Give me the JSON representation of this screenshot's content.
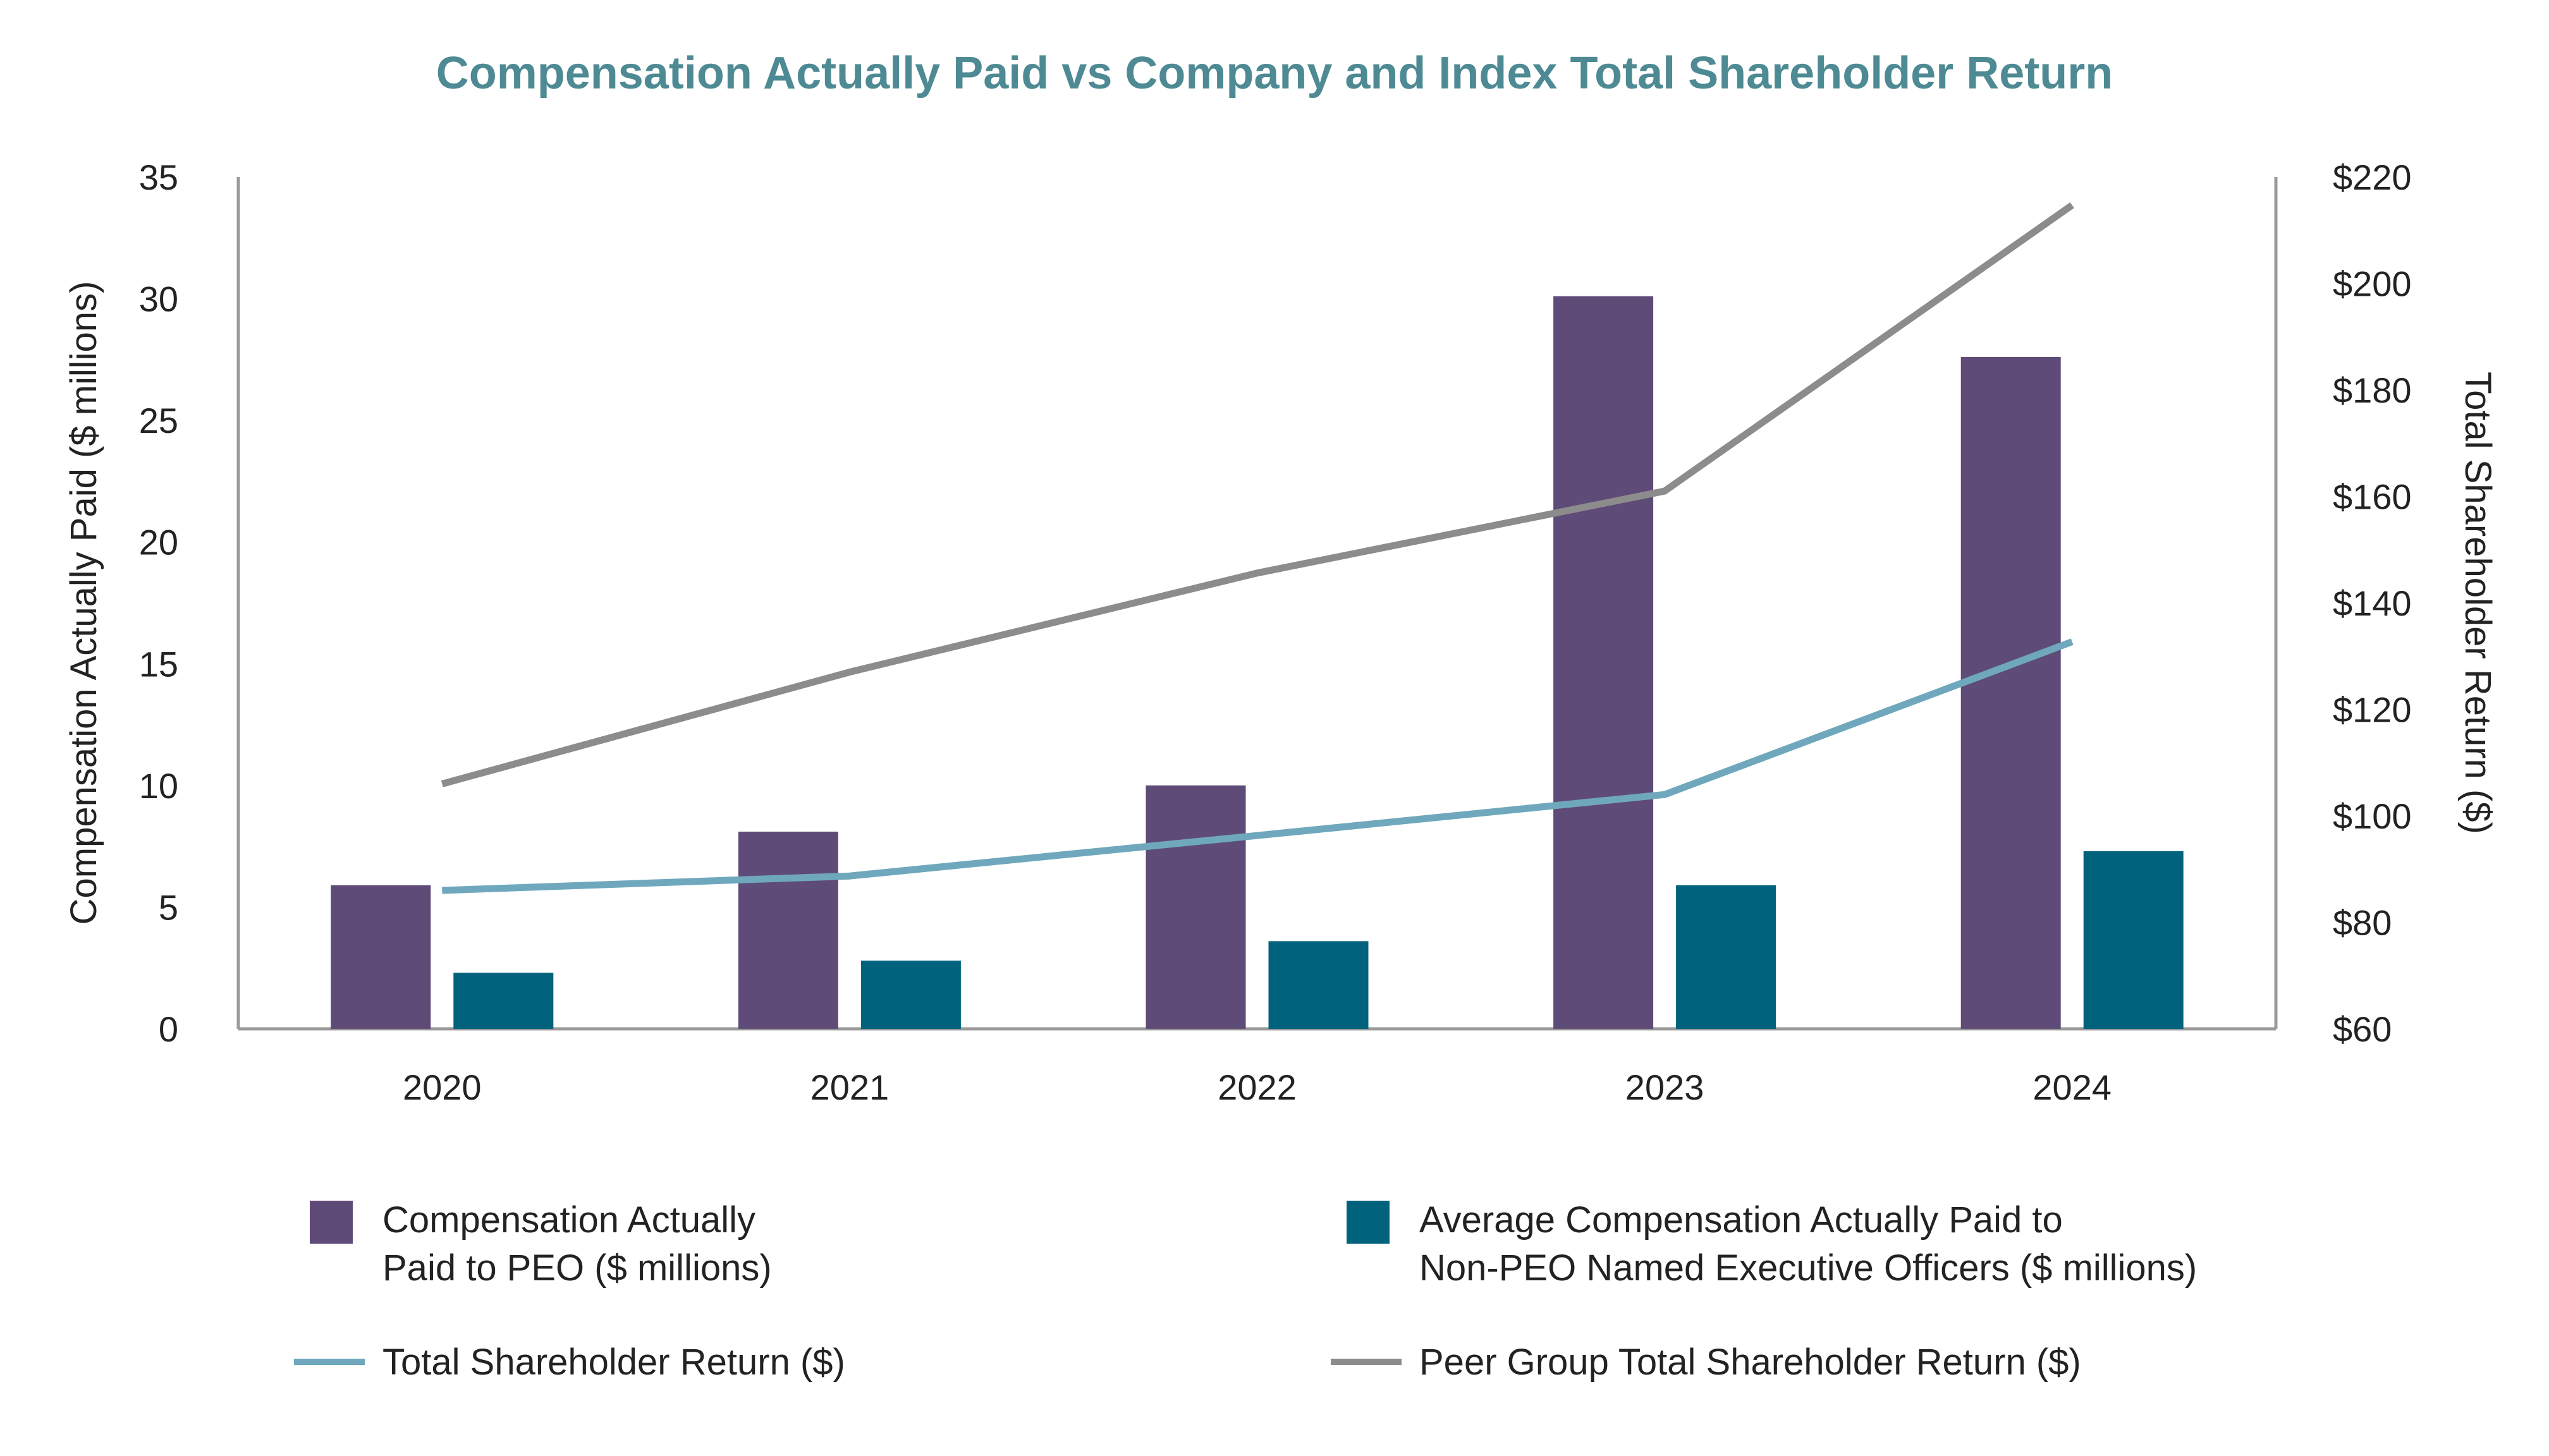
{
  "chart_data": {
    "type": "bar",
    "title": "Compensation Actually Paid vs Company and Index Total Shareholder Return",
    "categories": [
      "2020",
      "2021",
      "2022",
      "2023",
      "2024"
    ],
    "ylabel": "Compensation Actually Paid ($ millions)",
    "y2label": "Total Shareholder Return ($)",
    "ylim": [
      0,
      35
    ],
    "y_ticks": [
      "0",
      "5",
      "10",
      "15",
      "20",
      "25",
      "30",
      "35"
    ],
    "y2lim": [
      60,
      220
    ],
    "y2_ticks": [
      "$60",
      "$80",
      "$100",
      "$120",
      "$140",
      "$160",
      "$180",
      "$200",
      "$220"
    ],
    "legend_position": "bottom",
    "series": [
      {
        "name": "Compensation Actually Paid to PEO ($ millions)",
        "legend_lines": [
          "Compensation Actually",
          "Paid to PEO ($ millions)"
        ],
        "kind": "bar",
        "axis": "left",
        "color": "#5f4b77",
        "values": [
          5.9,
          8.1,
          10.0,
          30.1,
          27.6
        ]
      },
      {
        "name": "Average Compensation Actually Paid to Non-PEO Named Executive Officers ($ millions)",
        "legend_lines": [
          "Average Compensation Actually Paid to",
          "Non-PEO Named Executive Officers ($ millions)"
        ],
        "kind": "bar",
        "axis": "left",
        "color": "#00627d",
        "values": [
          2.3,
          2.8,
          3.6,
          5.9,
          7.3
        ]
      },
      {
        "name": "Total Shareholder Return ($)",
        "legend_lines": [
          "Total Shareholder Return ($)"
        ],
        "kind": "line",
        "axis": "right",
        "color": "#6fa8bd",
        "values": [
          86,
          88.7,
          96.3,
          104,
          132.7
        ]
      },
      {
        "name": "Peer Group Total Shareholder Return ($)",
        "legend_lines": [
          "Peer Group Total Shareholder Return ($)"
        ],
        "kind": "line",
        "axis": "right",
        "color": "#8c8c8c",
        "values": [
          106,
          127,
          145.6,
          161,
          214.7
        ]
      }
    ]
  }
}
